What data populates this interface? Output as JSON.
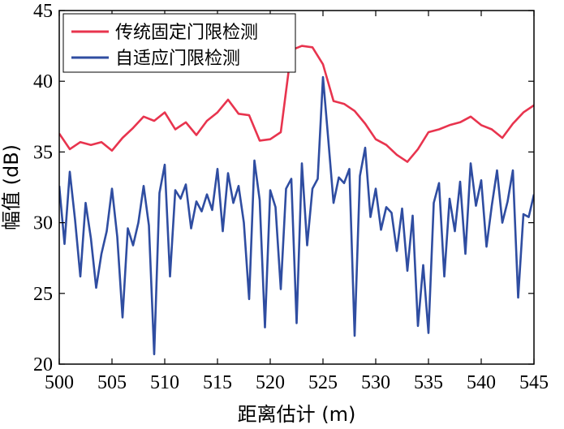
{
  "chart_data": {
    "type": "line",
    "xlabel": "距离估计 (m)",
    "ylabel": "幅值 (dB)",
    "xlim": [
      500,
      545
    ],
    "ylim": [
      20,
      45
    ],
    "xticks": [
      500,
      505,
      510,
      515,
      520,
      525,
      530,
      535,
      540,
      545
    ],
    "yticks": [
      20,
      25,
      30,
      35,
      40,
      45
    ],
    "grid": false,
    "legend_position": "top-left",
    "series": [
      {
        "name": "传统固定门限检测",
        "color": "#e8344e",
        "x": [
          500,
          501,
          502,
          503,
          504,
          505,
          506,
          507,
          508,
          509,
          510,
          511,
          512,
          513,
          514,
          515,
          516,
          517,
          518,
          519,
          520,
          521,
          522,
          523,
          524,
          525,
          526,
          527,
          528,
          529,
          530,
          531,
          532,
          533,
          534,
          535,
          536,
          537,
          538,
          539,
          540,
          541,
          542,
          543,
          544,
          545
        ],
        "values": [
          36.3,
          35.2,
          35.7,
          35.5,
          35.7,
          35.1,
          36.0,
          36.7,
          37.5,
          37.2,
          37.8,
          36.6,
          37.1,
          36.2,
          37.2,
          37.8,
          38.7,
          37.7,
          37.6,
          35.8,
          35.9,
          36.4,
          42.2,
          42.5,
          42.4,
          41.2,
          38.6,
          38.4,
          37.9,
          37.0,
          35.9,
          35.5,
          34.8,
          34.3,
          35.2,
          36.4,
          36.6,
          36.9,
          37.1,
          37.5,
          36.9,
          36.6,
          36.0,
          37.0,
          37.8,
          38.3
        ]
      },
      {
        "name": "自适应门限检测",
        "color": "#2f4da1",
        "x": [
          500,
          500.5,
          501,
          501.5,
          502,
          502.5,
          503,
          503.5,
          504,
          504.5,
          505,
          505.5,
          506,
          506.5,
          507,
          507.5,
          508,
          508.5,
          509,
          509.5,
          510,
          510.5,
          511,
          511.5,
          512,
          512.5,
          513,
          513.5,
          514,
          514.5,
          515,
          515.5,
          516,
          516.5,
          517,
          517.5,
          518,
          518.5,
          519,
          519.5,
          520,
          520.5,
          521,
          521.5,
          522,
          522.5,
          523,
          523.5,
          524,
          524.5,
          525,
          525.5,
          526,
          526.5,
          527,
          527.5,
          528,
          528.5,
          529,
          529.5,
          530,
          530.5,
          531,
          531.5,
          532,
          532.5,
          533,
          533.5,
          534,
          534.5,
          535,
          535.5,
          536,
          536.5,
          537,
          537.5,
          538,
          538.5,
          539,
          539.5,
          540,
          540.5,
          541,
          541.5,
          542,
          542.5,
          543,
          543.5,
          544,
          544.5,
          545
        ],
        "values": [
          32.6,
          28.5,
          33.6,
          30.2,
          26.2,
          31.4,
          28.9,
          25.4,
          27.8,
          29.4,
          32.4,
          29.0,
          23.3,
          29.6,
          28.4,
          30.0,
          32.6,
          29.8,
          20.7,
          32.1,
          34.1,
          26.2,
          32.3,
          31.7,
          32.7,
          29.6,
          31.5,
          30.8,
          32.0,
          30.9,
          33.8,
          29.4,
          33.5,
          31.4,
          32.6,
          30.0,
          24.6,
          34.4,
          31.6,
          22.6,
          32.3,
          31.1,
          25.3,
          32.4,
          33.1,
          22.9,
          34.2,
          28.4,
          32.4,
          33.1,
          40.3,
          35.9,
          31.4,
          33.2,
          32.8,
          33.8,
          22.0,
          33.3,
          35.3,
          30.4,
          32.4,
          29.5,
          31.1,
          30.7,
          28.0,
          31.0,
          26.6,
          30.5,
          22.7,
          27.0,
          22.2,
          31.4,
          32.8,
          26.2,
          31.7,
          29.4,
          32.9,
          27.8,
          34.2,
          31.2,
          33.0,
          28.3,
          31.2,
          33.7,
          30.0,
          31.5,
          33.7,
          24.7,
          30.6,
          30.4,
          32.0
        ]
      }
    ]
  }
}
